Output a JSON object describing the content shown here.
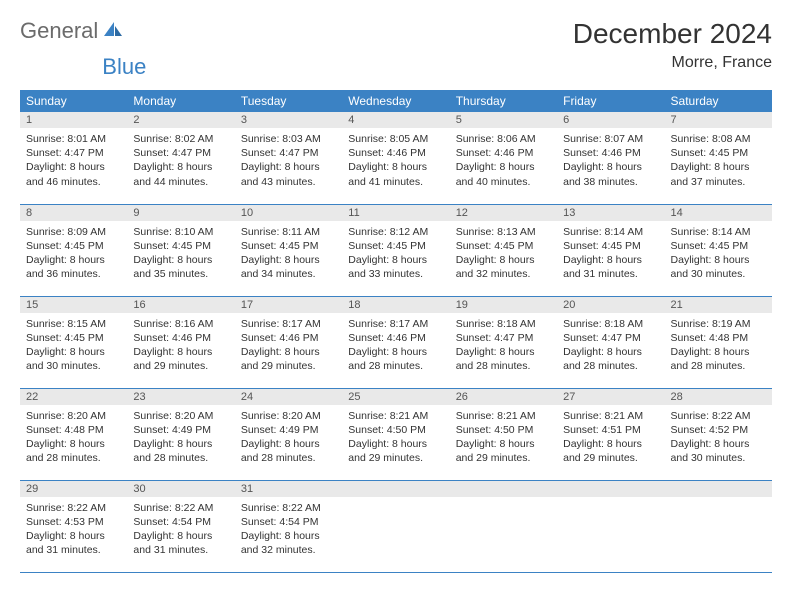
{
  "brand": {
    "name1": "General",
    "name2": "Blue"
  },
  "title": "December 2024",
  "location": "Morre, France",
  "colors": {
    "header_bg": "#3b82c4",
    "header_text": "#ffffff",
    "daynum_bg": "#e9e9e9",
    "row_border": "#3b82c4",
    "body_text": "#333333",
    "logo_gray": "#6b6b6b",
    "logo_blue": "#3b82c4"
  },
  "weekdays": [
    "Sunday",
    "Monday",
    "Tuesday",
    "Wednesday",
    "Thursday",
    "Friday",
    "Saturday"
  ],
  "days": [
    {
      "n": "1",
      "sunrise": "Sunrise: 8:01 AM",
      "sunset": "Sunset: 4:47 PM",
      "d1": "Daylight: 8 hours",
      "d2": "and 46 minutes."
    },
    {
      "n": "2",
      "sunrise": "Sunrise: 8:02 AM",
      "sunset": "Sunset: 4:47 PM",
      "d1": "Daylight: 8 hours",
      "d2": "and 44 minutes."
    },
    {
      "n": "3",
      "sunrise": "Sunrise: 8:03 AM",
      "sunset": "Sunset: 4:47 PM",
      "d1": "Daylight: 8 hours",
      "d2": "and 43 minutes."
    },
    {
      "n": "4",
      "sunrise": "Sunrise: 8:05 AM",
      "sunset": "Sunset: 4:46 PM",
      "d1": "Daylight: 8 hours",
      "d2": "and 41 minutes."
    },
    {
      "n": "5",
      "sunrise": "Sunrise: 8:06 AM",
      "sunset": "Sunset: 4:46 PM",
      "d1": "Daylight: 8 hours",
      "d2": "and 40 minutes."
    },
    {
      "n": "6",
      "sunrise": "Sunrise: 8:07 AM",
      "sunset": "Sunset: 4:46 PM",
      "d1": "Daylight: 8 hours",
      "d2": "and 38 minutes."
    },
    {
      "n": "7",
      "sunrise": "Sunrise: 8:08 AM",
      "sunset": "Sunset: 4:45 PM",
      "d1": "Daylight: 8 hours",
      "d2": "and 37 minutes."
    },
    {
      "n": "8",
      "sunrise": "Sunrise: 8:09 AM",
      "sunset": "Sunset: 4:45 PM",
      "d1": "Daylight: 8 hours",
      "d2": "and 36 minutes."
    },
    {
      "n": "9",
      "sunrise": "Sunrise: 8:10 AM",
      "sunset": "Sunset: 4:45 PM",
      "d1": "Daylight: 8 hours",
      "d2": "and 35 minutes."
    },
    {
      "n": "10",
      "sunrise": "Sunrise: 8:11 AM",
      "sunset": "Sunset: 4:45 PM",
      "d1": "Daylight: 8 hours",
      "d2": "and 34 minutes."
    },
    {
      "n": "11",
      "sunrise": "Sunrise: 8:12 AM",
      "sunset": "Sunset: 4:45 PM",
      "d1": "Daylight: 8 hours",
      "d2": "and 33 minutes."
    },
    {
      "n": "12",
      "sunrise": "Sunrise: 8:13 AM",
      "sunset": "Sunset: 4:45 PM",
      "d1": "Daylight: 8 hours",
      "d2": "and 32 minutes."
    },
    {
      "n": "13",
      "sunrise": "Sunrise: 8:14 AM",
      "sunset": "Sunset: 4:45 PM",
      "d1": "Daylight: 8 hours",
      "d2": "and 31 minutes."
    },
    {
      "n": "14",
      "sunrise": "Sunrise: 8:14 AM",
      "sunset": "Sunset: 4:45 PM",
      "d1": "Daylight: 8 hours",
      "d2": "and 30 minutes."
    },
    {
      "n": "15",
      "sunrise": "Sunrise: 8:15 AM",
      "sunset": "Sunset: 4:45 PM",
      "d1": "Daylight: 8 hours",
      "d2": "and 30 minutes."
    },
    {
      "n": "16",
      "sunrise": "Sunrise: 8:16 AM",
      "sunset": "Sunset: 4:46 PM",
      "d1": "Daylight: 8 hours",
      "d2": "and 29 minutes."
    },
    {
      "n": "17",
      "sunrise": "Sunrise: 8:17 AM",
      "sunset": "Sunset: 4:46 PM",
      "d1": "Daylight: 8 hours",
      "d2": "and 29 minutes."
    },
    {
      "n": "18",
      "sunrise": "Sunrise: 8:17 AM",
      "sunset": "Sunset: 4:46 PM",
      "d1": "Daylight: 8 hours",
      "d2": "and 28 minutes."
    },
    {
      "n": "19",
      "sunrise": "Sunrise: 8:18 AM",
      "sunset": "Sunset: 4:47 PM",
      "d1": "Daylight: 8 hours",
      "d2": "and 28 minutes."
    },
    {
      "n": "20",
      "sunrise": "Sunrise: 8:18 AM",
      "sunset": "Sunset: 4:47 PM",
      "d1": "Daylight: 8 hours",
      "d2": "and 28 minutes."
    },
    {
      "n": "21",
      "sunrise": "Sunrise: 8:19 AM",
      "sunset": "Sunset: 4:48 PM",
      "d1": "Daylight: 8 hours",
      "d2": "and 28 minutes."
    },
    {
      "n": "22",
      "sunrise": "Sunrise: 8:20 AM",
      "sunset": "Sunset: 4:48 PM",
      "d1": "Daylight: 8 hours",
      "d2": "and 28 minutes."
    },
    {
      "n": "23",
      "sunrise": "Sunrise: 8:20 AM",
      "sunset": "Sunset: 4:49 PM",
      "d1": "Daylight: 8 hours",
      "d2": "and 28 minutes."
    },
    {
      "n": "24",
      "sunrise": "Sunrise: 8:20 AM",
      "sunset": "Sunset: 4:49 PM",
      "d1": "Daylight: 8 hours",
      "d2": "and 28 minutes."
    },
    {
      "n": "25",
      "sunrise": "Sunrise: 8:21 AM",
      "sunset": "Sunset: 4:50 PM",
      "d1": "Daylight: 8 hours",
      "d2": "and 29 minutes."
    },
    {
      "n": "26",
      "sunrise": "Sunrise: 8:21 AM",
      "sunset": "Sunset: 4:50 PM",
      "d1": "Daylight: 8 hours",
      "d2": "and 29 minutes."
    },
    {
      "n": "27",
      "sunrise": "Sunrise: 8:21 AM",
      "sunset": "Sunset: 4:51 PM",
      "d1": "Daylight: 8 hours",
      "d2": "and 29 minutes."
    },
    {
      "n": "28",
      "sunrise": "Sunrise: 8:22 AM",
      "sunset": "Sunset: 4:52 PM",
      "d1": "Daylight: 8 hours",
      "d2": "and 30 minutes."
    },
    {
      "n": "29",
      "sunrise": "Sunrise: 8:22 AM",
      "sunset": "Sunset: 4:53 PM",
      "d1": "Daylight: 8 hours",
      "d2": "and 31 minutes."
    },
    {
      "n": "30",
      "sunrise": "Sunrise: 8:22 AM",
      "sunset": "Sunset: 4:54 PM",
      "d1": "Daylight: 8 hours",
      "d2": "and 31 minutes."
    },
    {
      "n": "31",
      "sunrise": "Sunrise: 8:22 AM",
      "sunset": "Sunset: 4:54 PM",
      "d1": "Daylight: 8 hours",
      "d2": "and 32 minutes."
    }
  ]
}
